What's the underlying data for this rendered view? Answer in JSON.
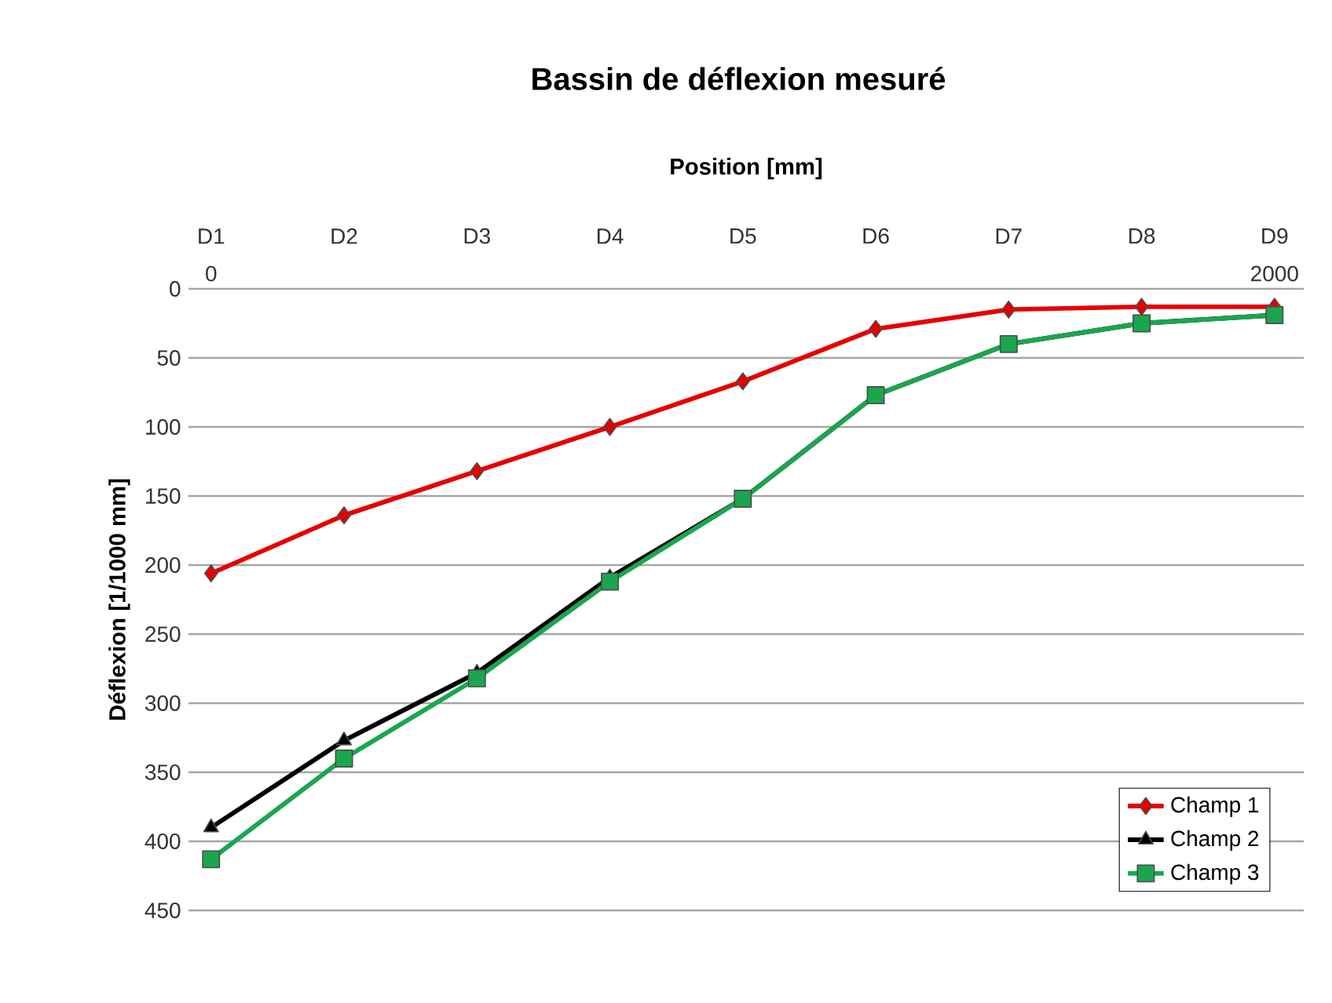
{
  "chart_data": {
    "type": "line",
    "title": "Bassin de déflexion mesuré",
    "xlabel": "Position [mm]",
    "ylabel": "Déflexion [1/1000 mm]",
    "categories": [
      "D1",
      "D2",
      "D3",
      "D4",
      "D5",
      "D6",
      "D7",
      "D8",
      "D9"
    ],
    "x2lim": [
      -42.5,
      2055
    ],
    "x2ticks": [
      0,
      2000
    ],
    "ylim": [
      450,
      0
    ],
    "yticks": [
      0,
      50,
      100,
      150,
      200,
      250,
      300,
      350,
      400,
      450
    ],
    "grid": "y",
    "legend": "bottom right",
    "line_style": "solid",
    "series": [
      {
        "name": "Champ 1",
        "color": "#e60000",
        "marker": "diamond",
        "values": [
          206,
          164,
          132,
          100,
          67,
          29,
          15,
          13,
          13
        ]
      },
      {
        "name": "Champ 2",
        "color": "#000000",
        "marker": "triangle",
        "values": [
          390,
          327,
          278,
          209,
          152,
          77,
          40,
          25,
          19
        ]
      },
      {
        "name": "Champ 3",
        "color": "#1aa64e",
        "marker": "square",
        "values": [
          413,
          340,
          282,
          212,
          152,
          77,
          40,
          25,
          19
        ]
      }
    ]
  }
}
